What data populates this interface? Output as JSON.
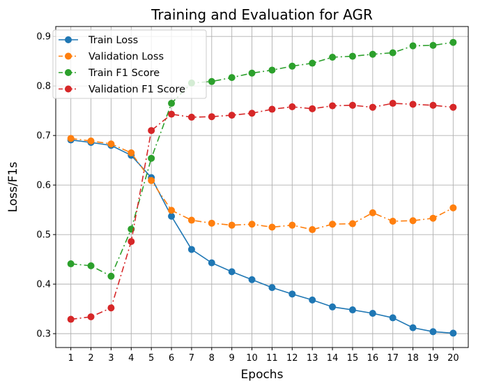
{
  "chart_data": {
    "type": "line",
    "title": "Training and Evaluation for AGR",
    "xlabel": "Epochs",
    "ylabel": "Loss/F1s",
    "x": [
      1,
      2,
      3,
      4,
      5,
      6,
      7,
      8,
      9,
      10,
      11,
      12,
      13,
      14,
      15,
      16,
      17,
      18,
      19,
      20
    ],
    "xlim": [
      0.25,
      20.75
    ],
    "ylim": [
      0.272,
      0.92
    ],
    "yticks": [
      0.3,
      0.4,
      0.5,
      0.6,
      0.7,
      0.8,
      0.9
    ],
    "ytick_labels": [
      "0.3",
      "0.4",
      "0.5",
      "0.6",
      "0.7",
      "0.8",
      "0.9"
    ],
    "grid": true,
    "legend_position": "top-left",
    "series": [
      {
        "name": "Train Loss",
        "color": "#1f77b4",
        "linestyle": "solid",
        "values": [
          0.691,
          0.686,
          0.68,
          0.66,
          0.615,
          0.537,
          0.47,
          0.443,
          0.425,
          0.409,
          0.393,
          0.38,
          0.368,
          0.354,
          0.348,
          0.341,
          0.332,
          0.312,
          0.304,
          0.301
        ]
      },
      {
        "name": "Validation Loss",
        "color": "#ff7f0e",
        "linestyle": "dashdot",
        "values": [
          0.694,
          0.689,
          0.683,
          0.665,
          0.609,
          0.549,
          0.529,
          0.523,
          0.519,
          0.521,
          0.515,
          0.519,
          0.51,
          0.521,
          0.522,
          0.544,
          0.527,
          0.528,
          0.533,
          0.554
        ]
      },
      {
        "name": "Train F1 Score",
        "color": "#2ca02c",
        "linestyle": "dashdot",
        "values": [
          0.441,
          0.437,
          0.416,
          0.511,
          0.654,
          0.765,
          0.806,
          0.809,
          0.817,
          0.826,
          0.832,
          0.84,
          0.846,
          0.858,
          0.86,
          0.864,
          0.867,
          0.881,
          0.882,
          0.888
        ]
      },
      {
        "name": "Validation F1 Score",
        "color": "#d62728",
        "linestyle": "dashdot",
        "values": [
          0.329,
          0.334,
          0.352,
          0.486,
          0.71,
          0.743,
          0.737,
          0.738,
          0.741,
          0.745,
          0.753,
          0.758,
          0.754,
          0.76,
          0.761,
          0.757,
          0.765,
          0.763,
          0.761,
          0.757
        ]
      }
    ]
  }
}
